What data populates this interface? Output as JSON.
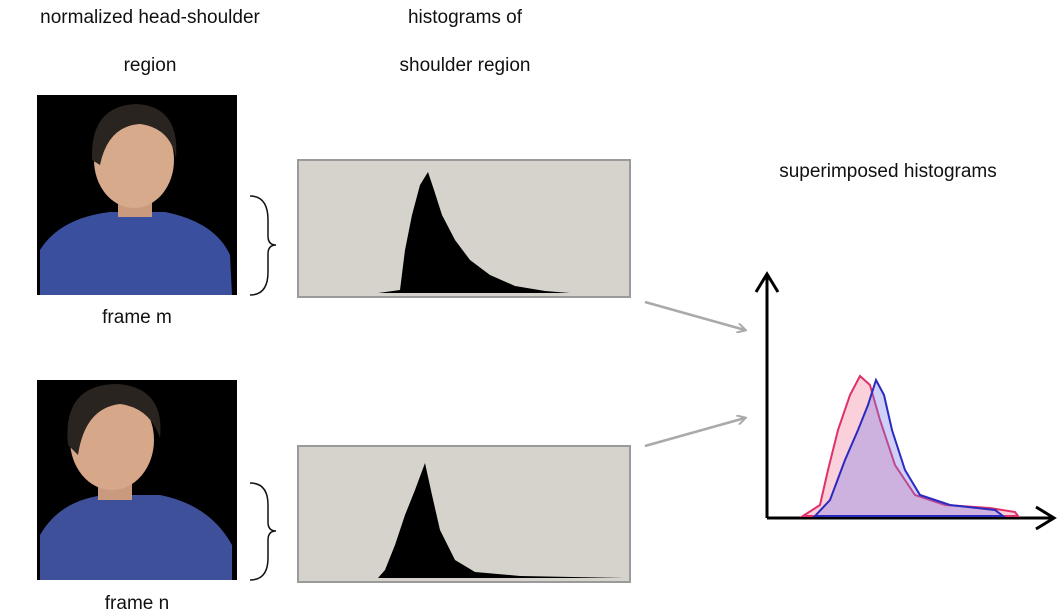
{
  "headings": {
    "regions": [
      "normalized head-shoulder",
      "region"
    ],
    "histograms": [
      "histograms of",
      "shoulder region"
    ],
    "superimposed": "superimposed histograms"
  },
  "frames": [
    "frame m",
    "frame n"
  ]
}
